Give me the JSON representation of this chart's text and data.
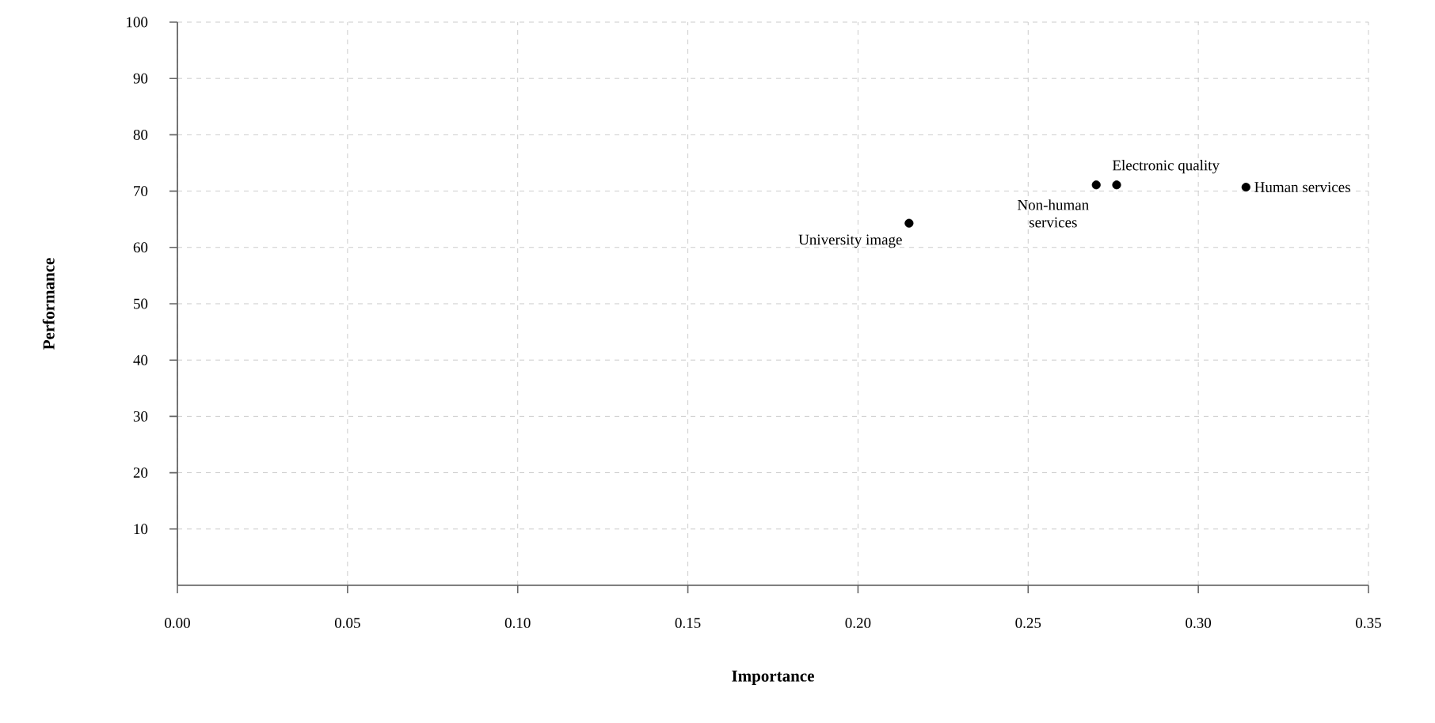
{
  "chart_data": {
    "type": "scatter",
    "xlabel": "Importance",
    "ylabel": "Performance",
    "x": [
      0.215,
      0.27,
      0.276,
      0.314
    ],
    "values": [
      64.3,
      71.1,
      71.1,
      70.7
    ],
    "color": "#000000",
    "marker": "circle",
    "grid": true,
    "xlim": [
      0,
      0.35
    ],
    "ylim": [
      0,
      100
    ],
    "xticks": [
      {
        "value": 0,
        "label": "0.00"
      },
      0.05,
      {
        "value": 0.1,
        "label": "0.10"
      },
      0.15,
      {
        "value": 0.2,
        "label": "0.20"
      },
      0.25,
      {
        "value": 0.3,
        "label": "0.30"
      },
      0.35
    ],
    "yticks": [
      10,
      20,
      30,
      40,
      50,
      60,
      70,
      80,
      90,
      100
    ],
    "annotations": [
      {
        "text": "University image",
        "x": 0.215,
        "y": 64.3
      },
      {
        "text": "Non-human services",
        "x": 0.27,
        "y": 71.1
      },
      {
        "text": "Electronic quality",
        "x": 0.276,
        "y": 71.1
      },
      {
        "text": "Human services",
        "x": 0.314,
        "y": 70.7
      }
    ]
  }
}
